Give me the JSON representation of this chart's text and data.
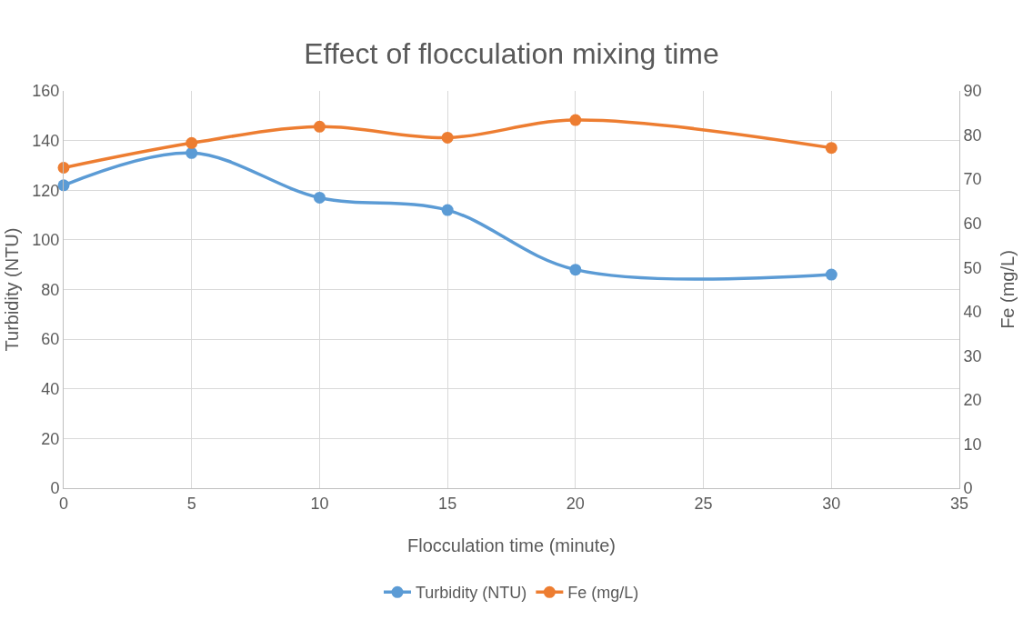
{
  "chart_data": {
    "type": "line",
    "title": "Effect of flocculation mixing time",
    "xlabel": "Flocculation time (minute)",
    "ylabel": "Turbidity (NTU)",
    "y2label": "Fe (mg/L)",
    "x": [
      0,
      5,
      10,
      15,
      20,
      30
    ],
    "series": [
      {
        "name": "Turbidity (NTU)",
        "color": "#5b9bd5",
        "values": [
          122,
          135,
          117,
          112,
          88,
          86
        ]
      },
      {
        "name": "Fe (mg/L)",
        "color": "#ed7d31",
        "axis": "y2",
        "values": [
          72.6,
          78.2,
          81.9,
          79.4,
          83.4,
          77.1
        ]
      }
    ],
    "xlim": [
      0,
      35
    ],
    "xticks": [
      0,
      5,
      10,
      15,
      20,
      25,
      30,
      35
    ],
    "ylim": [
      0,
      160
    ],
    "yticks": [
      0,
      20,
      40,
      60,
      80,
      100,
      120,
      140,
      160
    ],
    "y2lim": [
      0,
      90
    ],
    "y2ticks": [
      0,
      10,
      20,
      30,
      40,
      50,
      60,
      70,
      80,
      90
    ],
    "grid": true,
    "legend": "bottom",
    "marker": "circle",
    "line_style": "solid"
  }
}
